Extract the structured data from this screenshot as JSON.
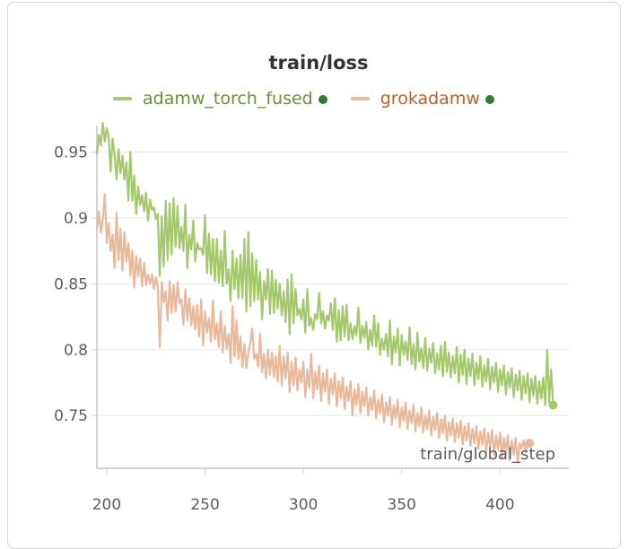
{
  "chart_data": {
    "type": "line",
    "title": "train/loss",
    "xlabel": "train/global_step",
    "ylabel": "",
    "xlim": [
      195,
      435
    ],
    "ylim": [
      0.71,
      0.97
    ],
    "grid": true,
    "legend_position": "top",
    "x_ticks": [
      "200",
      "250",
      "300",
      "350",
      "400"
    ],
    "y_ticks": [
      "0.75",
      "0.8",
      "0.85",
      "0.9",
      "0.95"
    ],
    "series": [
      {
        "name": "adamw_torch_fused",
        "color": "#a3c96c",
        "legend_text_color": "#6d8f3a",
        "dot_color": "#2f7d31",
        "x_start": 195,
        "x_step": 1,
        "values": [
          0.948,
          0.963,
          0.955,
          0.972,
          0.958,
          0.968,
          0.961,
          0.935,
          0.96,
          0.948,
          0.929,
          0.952,
          0.934,
          0.947,
          0.929,
          0.942,
          0.913,
          0.95,
          0.913,
          0.932,
          0.903,
          0.924,
          0.91,
          0.917,
          0.905,
          0.919,
          0.898,
          0.914,
          0.906,
          0.908,
          0.899,
          0.903,
          0.856,
          0.901,
          0.863,
          0.913,
          0.868,
          0.911,
          0.872,
          0.915,
          0.878,
          0.909,
          0.877,
          0.893,
          0.875,
          0.91,
          0.862,
          0.887,
          0.876,
          0.898,
          0.867,
          0.881,
          0.876,
          0.877,
          0.872,
          0.902,
          0.858,
          0.888,
          0.857,
          0.884,
          0.852,
          0.884,
          0.851,
          0.875,
          0.848,
          0.89,
          0.85,
          0.861,
          0.837,
          0.875,
          0.846,
          0.869,
          0.839,
          0.872,
          0.839,
          0.884,
          0.829,
          0.889,
          0.833,
          0.873,
          0.837,
          0.868,
          0.838,
          0.859,
          0.823,
          0.852,
          0.838,
          0.861,
          0.827,
          0.86,
          0.828,
          0.853,
          0.831,
          0.85,
          0.826,
          0.844,
          0.821,
          0.853,
          0.812,
          0.857,
          0.82,
          0.846,
          0.826,
          0.831,
          0.823,
          0.838,
          0.813,
          0.846,
          0.818,
          0.824,
          0.815,
          0.827,
          0.823,
          0.843,
          0.82,
          0.829,
          0.816,
          0.826,
          0.822,
          0.835,
          0.815,
          0.839,
          0.806,
          0.83,
          0.807,
          0.833,
          0.81,
          0.834,
          0.807,
          0.82,
          0.808,
          0.818,
          0.811,
          0.832,
          0.805,
          0.818,
          0.809,
          0.821,
          0.8,
          0.815,
          0.803,
          0.826,
          0.802,
          0.82,
          0.796,
          0.808,
          0.8,
          0.812,
          0.795,
          0.822,
          0.789,
          0.81,
          0.798,
          0.816,
          0.788,
          0.811,
          0.796,
          0.806,
          0.792,
          0.817,
          0.789,
          0.804,
          0.785,
          0.813,
          0.791,
          0.801,
          0.786,
          0.809,
          0.784,
          0.801,
          0.79,
          0.805,
          0.782,
          0.797,
          0.785,
          0.803,
          0.78,
          0.806,
          0.783,
          0.798,
          0.779,
          0.795,
          0.782,
          0.802,
          0.775,
          0.796,
          0.781,
          0.8,
          0.774,
          0.793,
          0.78,
          0.797,
          0.773,
          0.79,
          0.778,
          0.795,
          0.772,
          0.788,
          0.776,
          0.793,
          0.77,
          0.787,
          0.775,
          0.79,
          0.768,
          0.785,
          0.773,
          0.788,
          0.766,
          0.783,
          0.771,
          0.786,
          0.764,
          0.781,
          0.769,
          0.784,
          0.762,
          0.78,
          0.767,
          0.782,
          0.76,
          0.778,
          0.765,
          0.78,
          0.759,
          0.776,
          0.763,
          0.779,
          0.758,
          0.8,
          0.76,
          0.785,
          0.758
        ],
        "end_marker": true
      },
      {
        "name": "grokadamw",
        "color": "#e8b99a",
        "legend_text_color": "#b9622e",
        "dot_color": "#2f7d31",
        "x_start": 195,
        "x_step": 1,
        "values": [
          0.892,
          0.905,
          0.889,
          0.899,
          0.918,
          0.881,
          0.896,
          0.875,
          0.887,
          0.862,
          0.904,
          0.868,
          0.892,
          0.86,
          0.889,
          0.867,
          0.881,
          0.856,
          0.875,
          0.847,
          0.871,
          0.856,
          0.869,
          0.848,
          0.866,
          0.849,
          0.857,
          0.85,
          0.857,
          0.846,
          0.855,
          0.847,
          0.802,
          0.851,
          0.836,
          0.844,
          0.822,
          0.852,
          0.828,
          0.849,
          0.829,
          0.851,
          0.835,
          0.838,
          0.819,
          0.846,
          0.822,
          0.839,
          0.818,
          0.833,
          0.815,
          0.834,
          0.81,
          0.838,
          0.803,
          0.829,
          0.813,
          0.824,
          0.806,
          0.837,
          0.808,
          0.82,
          0.802,
          0.829,
          0.798,
          0.818,
          0.801,
          0.812,
          0.79,
          0.833,
          0.795,
          0.822,
          0.793,
          0.81,
          0.787,
          0.804,
          0.786,
          0.798,
          0.805,
          0.816,
          0.793,
          0.797,
          0.787,
          0.812,
          0.783,
          0.797,
          0.778,
          0.8,
          0.781,
          0.798,
          0.779,
          0.795,
          0.776,
          0.803,
          0.773,
          0.795,
          0.778,
          0.798,
          0.768,
          0.791,
          0.773,
          0.794,
          0.769,
          0.785,
          0.775,
          0.791,
          0.764,
          0.785,
          0.771,
          0.797,
          0.763,
          0.783,
          0.77,
          0.788,
          0.761,
          0.782,
          0.768,
          0.785,
          0.759,
          0.778,
          0.766,
          0.782,
          0.757,
          0.776,
          0.763,
          0.779,
          0.755,
          0.772,
          0.761,
          0.776,
          0.75,
          0.77,
          0.758,
          0.774,
          0.752,
          0.768,
          0.757,
          0.771,
          0.75,
          0.764,
          0.754,
          0.769,
          0.748,
          0.762,
          0.752,
          0.766,
          0.745,
          0.76,
          0.75,
          0.764,
          0.743,
          0.758,
          0.748,
          0.762,
          0.741,
          0.756,
          0.746,
          0.76,
          0.74,
          0.754,
          0.744,
          0.758,
          0.738,
          0.752,
          0.742,
          0.756,
          0.737,
          0.75,
          0.74,
          0.754,
          0.735,
          0.749,
          0.739,
          0.752,
          0.733,
          0.747,
          0.737,
          0.75,
          0.731,
          0.745,
          0.735,
          0.748,
          0.73,
          0.744,
          0.733,
          0.746,
          0.728,
          0.742,
          0.731,
          0.744,
          0.727,
          0.74,
          0.729,
          0.742,
          0.725,
          0.738,
          0.728,
          0.74,
          0.722,
          0.737,
          0.726,
          0.739,
          0.72,
          0.735,
          0.724,
          0.737,
          0.718,
          0.733,
          0.722,
          0.735,
          0.716,
          0.731,
          0.72,
          0.733,
          0.714,
          0.729,
          0.725,
          0.731,
          0.722,
          0.728,
          0.729
        ],
        "end_marker": true
      }
    ]
  }
}
